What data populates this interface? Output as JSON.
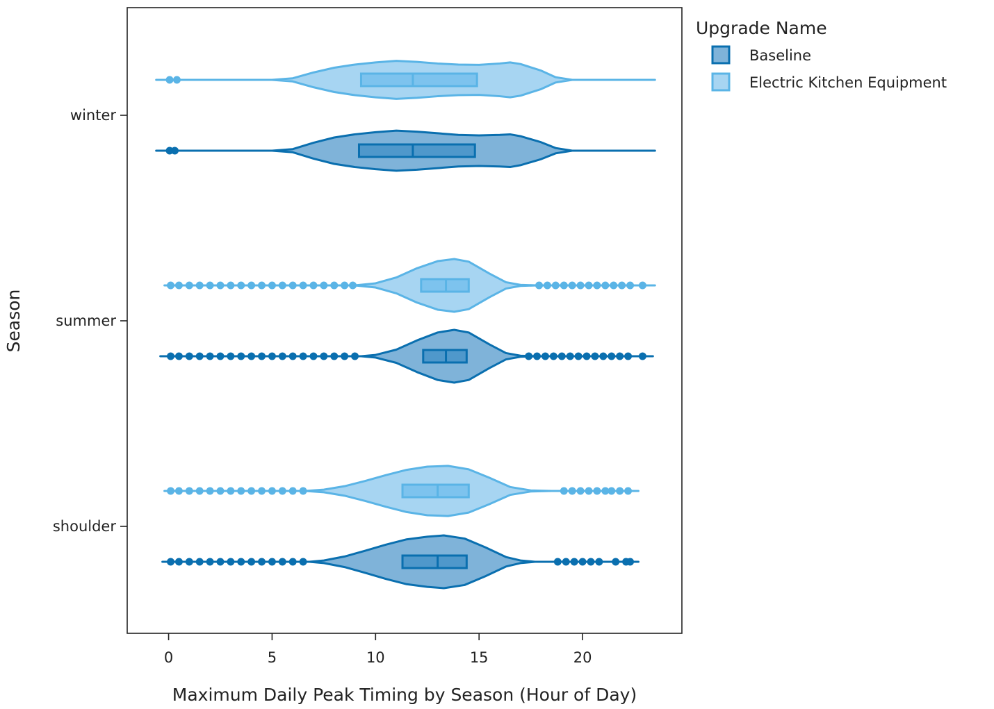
{
  "chart_data": {
    "type": "violin",
    "orientation": "horizontal",
    "xlabel": "Maximum Daily Peak Timing by Season (Hour of Day)",
    "ylabel": "Season",
    "xlim": [
      -2,
      24.8
    ],
    "xticks": [
      0,
      5,
      10,
      15,
      20
    ],
    "categories": [
      "winter",
      "summer",
      "shoulder"
    ],
    "legend": {
      "title": "Upgrade Name",
      "placement": "right-top",
      "entries": [
        {
          "name": "Baseline",
          "fill": "#7fb3d9",
          "stroke": "#0a6faf"
        },
        {
          "name": "Electric Kitchen Equipment",
          "fill": "#a7d5f2",
          "stroke": "#5ab4e6"
        }
      ]
    },
    "series": [
      {
        "name": "Electric Kitchen Equipment",
        "color": "#5ab4e6",
        "fill": "#a7d5f2",
        "box_fill": "#7dc3ee",
        "groups": [
          {
            "category": "winter",
            "min": -0.6,
            "max": 23.5,
            "q1": 9.3,
            "median": 11.8,
            "q3": 14.9,
            "density": [
              [
                -0.6,
                0.0
              ],
              [
                5,
                0.0
              ],
              [
                6,
                0.06
              ],
              [
                7,
                0.28
              ],
              [
                8,
                0.46
              ],
              [
                9,
                0.58
              ],
              [
                10,
                0.66
              ],
              [
                11,
                0.72
              ],
              [
                12,
                0.68
              ],
              [
                13,
                0.62
              ],
              [
                14,
                0.58
              ],
              [
                15,
                0.57
              ],
              [
                16,
                0.62
              ],
              [
                16.5,
                0.66
              ],
              [
                17,
                0.6
              ],
              [
                18,
                0.35
              ],
              [
                18.7,
                0.1
              ],
              [
                19.5,
                0.0
              ],
              [
                23.5,
                0.0
              ]
            ],
            "outliers": [
              0.05,
              0.4
            ]
          },
          {
            "category": "summer",
            "min": -0.2,
            "max": 23.5,
            "q1": 12.2,
            "median": 13.4,
            "q3": 14.5,
            "density": [
              [
                -0.2,
                0.0
              ],
              [
                9,
                0.0
              ],
              [
                10,
                0.08
              ],
              [
                11,
                0.3
              ],
              [
                12,
                0.65
              ],
              [
                13,
                0.92
              ],
              [
                13.8,
                1.0
              ],
              [
                14.5,
                0.9
              ],
              [
                15.5,
                0.45
              ],
              [
                16.3,
                0.12
              ],
              [
                17,
                0.02
              ],
              [
                17.8,
                0.0
              ],
              [
                23.5,
                0.0
              ]
            ],
            "outliers": [
              0.1,
              0.5,
              1,
              1.5,
              2,
              2.5,
              3,
              3.5,
              4,
              4.5,
              5,
              5.5,
              6,
              6.5,
              7,
              7.5,
              8,
              8.5,
              8.9,
              17.9,
              18.3,
              18.7,
              19.1,
              19.5,
              19.9,
              20.3,
              20.7,
              21.1,
              21.5,
              21.9,
              22.3,
              22.9
            ]
          },
          {
            "category": "shoulder",
            "min": -0.2,
            "max": 22.7,
            "q1": 11.3,
            "median": 13.0,
            "q3": 14.5,
            "density": [
              [
                -0.2,
                0.0
              ],
              [
                6.6,
                0.0
              ],
              [
                7.5,
                0.05
              ],
              [
                8.5,
                0.18
              ],
              [
                9.5,
                0.38
              ],
              [
                10.5,
                0.6
              ],
              [
                11.5,
                0.8
              ],
              [
                12.5,
                0.92
              ],
              [
                13.5,
                0.95
              ],
              [
                14.5,
                0.82
              ],
              [
                15.5,
                0.5
              ],
              [
                16.5,
                0.15
              ],
              [
                17.5,
                0.02
              ],
              [
                18.5,
                0.0
              ],
              [
                22.7,
                0.0
              ]
            ],
            "outliers": [
              0.1,
              0.5,
              1,
              1.5,
              2,
              2.5,
              3,
              3.5,
              4,
              4.5,
              5,
              5.5,
              6,
              6.5,
              19.1,
              19.5,
              19.9,
              20.3,
              20.7,
              21.1,
              21.4,
              21.8,
              22.2
            ]
          }
        ]
      },
      {
        "name": "Baseline",
        "color": "#0a6faf",
        "fill": "#7fb3d9",
        "box_fill": "#4f98cb",
        "groups": [
          {
            "category": "winter",
            "min": -0.6,
            "max": 23.5,
            "q1": 9.2,
            "median": 11.8,
            "q3": 14.8,
            "density": [
              [
                -0.6,
                0.0
              ],
              [
                5,
                0.0
              ],
              [
                6,
                0.06
              ],
              [
                7,
                0.3
              ],
              [
                8,
                0.5
              ],
              [
                9,
                0.62
              ],
              [
                10,
                0.7
              ],
              [
                11,
                0.76
              ],
              [
                12,
                0.72
              ],
              [
                13,
                0.66
              ],
              [
                14,
                0.6
              ],
              [
                15,
                0.58
              ],
              [
                16,
                0.6
              ],
              [
                16.5,
                0.62
              ],
              [
                17,
                0.55
              ],
              [
                18,
                0.32
              ],
              [
                18.7,
                0.1
              ],
              [
                19.5,
                0.0
              ],
              [
                23.5,
                0.0
              ]
            ],
            "outliers": [
              0.05,
              0.3
            ]
          },
          {
            "category": "summer",
            "min": -0.4,
            "max": 23.4,
            "q1": 12.3,
            "median": 13.4,
            "q3": 14.4,
            "density": [
              [
                -0.4,
                0.0
              ],
              [
                9.3,
                0.0
              ],
              [
                10,
                0.05
              ],
              [
                11,
                0.25
              ],
              [
                12,
                0.6
              ],
              [
                13,
                0.9
              ],
              [
                13.8,
                1.0
              ],
              [
                14.5,
                0.9
              ],
              [
                15.5,
                0.45
              ],
              [
                16.3,
                0.12
              ],
              [
                17,
                0.02
              ],
              [
                17.8,
                0.0
              ],
              [
                23.4,
                0.0
              ]
            ],
            "outliers": [
              0.1,
              0.5,
              1,
              1.5,
              2,
              2.5,
              3,
              3.5,
              4,
              4.5,
              5,
              5.5,
              6,
              6.5,
              7,
              7.5,
              8,
              8.5,
              9,
              17.4,
              17.8,
              18.2,
              18.6,
              19,
              19.4,
              19.8,
              20.2,
              20.6,
              21,
              21.4,
              21.8,
              22.2,
              22.9
            ]
          },
          {
            "category": "shoulder",
            "min": -0.3,
            "max": 22.7,
            "q1": 11.3,
            "median": 13.0,
            "q3": 14.4,
            "density": [
              [
                -0.3,
                0.0
              ],
              [
                6.8,
                0.0
              ],
              [
                7.5,
                0.05
              ],
              [
                8.5,
                0.2
              ],
              [
                9.5,
                0.42
              ],
              [
                10.5,
                0.65
              ],
              [
                11.5,
                0.85
              ],
              [
                12.5,
                0.95
              ],
              [
                13.3,
                1.0
              ],
              [
                14.3,
                0.88
              ],
              [
                15.3,
                0.55
              ],
              [
                16.3,
                0.18
              ],
              [
                17,
                0.05
              ],
              [
                17.7,
                0.0
              ],
              [
                22.7,
                0.0
              ]
            ],
            "outliers": [
              0.1,
              0.5,
              1,
              1.5,
              2,
              2.5,
              3,
              3.5,
              4,
              4.5,
              5,
              5.5,
              6,
              6.5,
              18.8,
              19.2,
              19.6,
              20,
              20.4,
              20.8,
              21.6,
              22.1,
              22.3
            ]
          }
        ]
      }
    ]
  }
}
